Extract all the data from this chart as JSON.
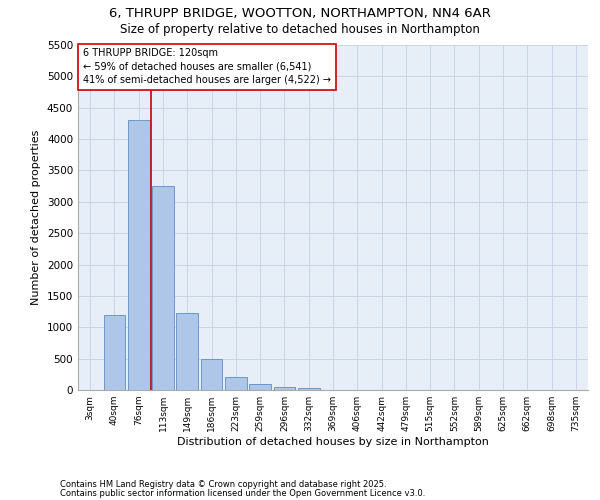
{
  "title_line1": "6, THRUPP BRIDGE, WOOTTON, NORTHAMPTON, NN4 6AR",
  "title_line2": "Size of property relative to detached houses in Northampton",
  "xlabel": "Distribution of detached houses by size in Northampton",
  "ylabel": "Number of detached properties",
  "categories": [
    "3sqm",
    "40sqm",
    "76sqm",
    "113sqm",
    "149sqm",
    "186sqm",
    "223sqm",
    "259sqm",
    "296sqm",
    "332sqm",
    "369sqm",
    "406sqm",
    "442sqm",
    "479sqm",
    "515sqm",
    "552sqm",
    "589sqm",
    "625sqm",
    "662sqm",
    "698sqm",
    "735sqm"
  ],
  "values": [
    0,
    1200,
    4300,
    3250,
    1220,
    500,
    200,
    90,
    50,
    30,
    0,
    0,
    0,
    0,
    0,
    0,
    0,
    0,
    0,
    0,
    0
  ],
  "bar_color": "#aec6e8",
  "bar_edge_color": "#5b8ec4",
  "grid_color": "#c8d4e8",
  "background_color": "#e8eef8",
  "vline_color": "#cc0000",
  "vline_x": 2.5,
  "annotation_text": "6 THRUPP BRIDGE: 120sqm\n← 59% of detached houses are smaller (6,541)\n41% of semi-detached houses are larger (4,522) →",
  "annotation_box_color": "#cc0000",
  "ylim": [
    0,
    5500
  ],
  "yticks": [
    0,
    500,
    1000,
    1500,
    2000,
    2500,
    3000,
    3500,
    4000,
    4500,
    5000,
    5500
  ],
  "footer_line1": "Contains HM Land Registry data © Crown copyright and database right 2025.",
  "footer_line2": "Contains public sector information licensed under the Open Government Licence v3.0."
}
